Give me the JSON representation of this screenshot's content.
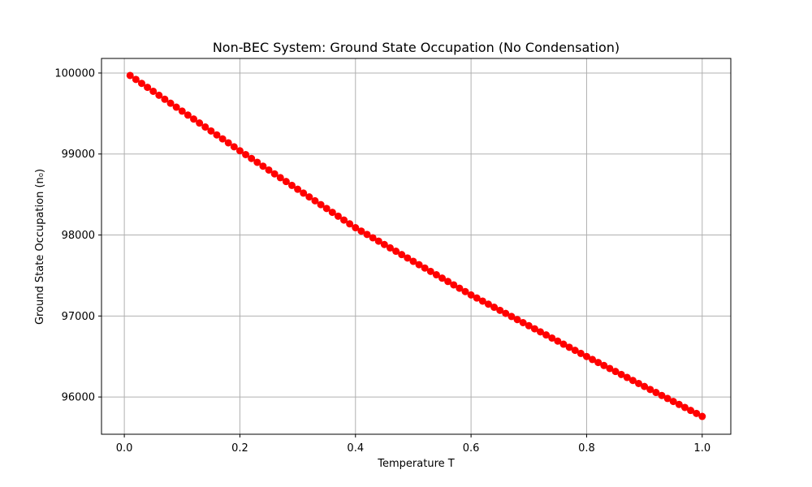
{
  "chart_data": {
    "type": "scatter",
    "title": "Non-BEC System: Ground State Occupation (No Condensation)",
    "xlabel": "Temperature T",
    "ylabel": "Ground State Occupation (n₀)",
    "xlim": [
      -0.0395,
      1.0495
    ],
    "ylim": [
      95540,
      100180
    ],
    "xticks": [
      0.0,
      0.2,
      0.4,
      0.6,
      0.8,
      1.0
    ],
    "xtick_labels": [
      "0.0",
      "0.2",
      "0.4",
      "0.6",
      "0.8",
      "1.0"
    ],
    "yticks": [
      96000,
      97000,
      98000,
      99000,
      100000
    ],
    "ytick_labels": [
      "96000",
      "97000",
      "98000",
      "99000",
      "100000"
    ],
    "grid": true,
    "marker_color": "#ff0000",
    "series": [
      {
        "x_start": 0.01,
        "x_end": 1.0,
        "num_points": 100,
        "values_at_ticks": {
          "0.01": 99970,
          "0.2": 99040,
          "0.4": 98090,
          "0.6": 97260,
          "0.8": 96500,
          "1.0": 95760
        }
      }
    ]
  }
}
